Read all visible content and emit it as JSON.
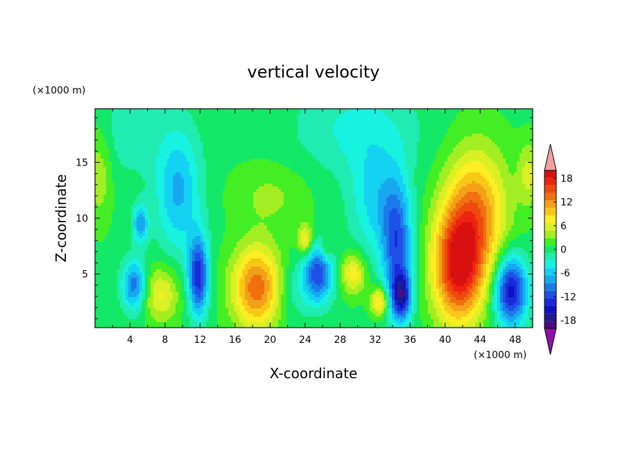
{
  "chart_data": {
    "type": "heatmap",
    "title": "vertical velocity",
    "xlabel": "X-coordinate",
    "ylabel": "Z-coordinate",
    "x_unit_label": "(×1000 m)",
    "y_unit_label": "(×1000 m)",
    "xlim": [
      0,
      50
    ],
    "ylim": [
      0.2,
      19.8
    ],
    "x_ticks": [
      4,
      8,
      12,
      16,
      20,
      24,
      28,
      32,
      36,
      40,
      44,
      48
    ],
    "y_ticks": [
      5,
      10,
      15
    ],
    "x_tick_labels": [
      "4",
      "8",
      "12",
      "16",
      "20",
      "24",
      "28",
      "32",
      "36",
      "40",
      "44",
      "48"
    ],
    "y_tick_labels": [
      "5",
      "10",
      "15"
    ],
    "colorbar": {
      "levels": [
        -20,
        -18,
        -16,
        -14,
        -12,
        -10,
        -8,
        -6,
        -4,
        -2,
        0,
        2,
        4,
        6,
        8,
        10,
        12,
        14,
        16,
        18,
        20
      ],
      "tick_values": [
        -18,
        -12,
        -6,
        0,
        6,
        12,
        18
      ],
      "tick_labels": [
        "-18",
        "-12",
        "-6",
        "0",
        "6",
        "12",
        "18"
      ],
      "colors": [
        "#4b0d7e",
        "#1d1d8f",
        "#1010c0",
        "#1a2ad8",
        "#1e50e8",
        "#1a7ae8",
        "#18a8f0",
        "#14d2f2",
        "#18f2e0",
        "#20ebb0",
        "#14e868",
        "#44ee24",
        "#a2ee22",
        "#daf025",
        "#fcee22",
        "#f8c818",
        "#f4a018",
        "#f07010",
        "#ee4a0e",
        "#ec2410",
        "#d81010"
      ],
      "under_color": "#8e10a8",
      "over_color": "#f2a0a0"
    },
    "features": [
      {
        "x": 4.5,
        "z": 4.0,
        "value": -11,
        "sx": 1.0,
        "sz": 1.6
      },
      {
        "x": 5.2,
        "z": 9.5,
        "value": -9,
        "sx": 0.6,
        "sz": 1.2
      },
      {
        "x": 7.5,
        "z": 3.2,
        "value": 7,
        "sx": 1.5,
        "sz": 1.8
      },
      {
        "x": 9.5,
        "z": 12.5,
        "value": -8,
        "sx": 1.8,
        "sz": 4.0
      },
      {
        "x": 11.8,
        "z": 4.8,
        "value": -15,
        "sx": 0.8,
        "sz": 2.5
      },
      {
        "x": 18.5,
        "z": 3.8,
        "value": 14,
        "sx": 2.0,
        "sz": 2.6
      },
      {
        "x": 22.5,
        "z": 3.5,
        "value": -3,
        "sx": 1.5,
        "sz": 2.0
      },
      {
        "x": 24.0,
        "z": 8.0,
        "value": 8,
        "sx": 0.6,
        "sz": 1.0
      },
      {
        "x": 25.5,
        "z": 5.0,
        "value": -13,
        "sx": 1.2,
        "sz": 1.8
      },
      {
        "x": 26.5,
        "z": 7.2,
        "value": 4,
        "sx": 0.5,
        "sz": 0.8
      },
      {
        "x": 29.5,
        "z": 5.0,
        "value": 8,
        "sx": 1.0,
        "sz": 1.3
      },
      {
        "x": 32.5,
        "z": 2.5,
        "value": 10,
        "sx": 0.7,
        "sz": 0.9
      },
      {
        "x": 32.0,
        "z": 11.5,
        "value": -6,
        "sx": 2.0,
        "sz": 3.5
      },
      {
        "x": 34.5,
        "z": 7.5,
        "value": -12,
        "sx": 1.2,
        "sz": 4.0
      },
      {
        "x": 35.0,
        "z": 3.0,
        "value": -14,
        "sx": 0.8,
        "sz": 1.5
      },
      {
        "x": 41.5,
        "z": 5.5,
        "value": 18,
        "sx": 2.0,
        "sz": 3.5
      },
      {
        "x": 43.5,
        "z": 10.5,
        "value": 12,
        "sx": 2.5,
        "sz": 4.0
      },
      {
        "x": 47.5,
        "z": 3.5,
        "value": -17,
        "sx": 1.3,
        "sz": 2.2
      },
      {
        "x": 0.5,
        "z": 14.0,
        "value": 4,
        "sx": 1.0,
        "sz": 3.0
      },
      {
        "x": 49.5,
        "z": 14.0,
        "value": 5,
        "sx": 0.8,
        "sz": 2.0
      },
      {
        "x": 20.0,
        "z": 12.0,
        "value": 3,
        "sx": 3.0,
        "sz": 2.0
      },
      {
        "x": 30.0,
        "z": 18.0,
        "value": -4,
        "sx": 5.0,
        "sz": 3.0
      },
      {
        "x": 4.0,
        "z": 18.0,
        "value": -3,
        "sx": 2.5,
        "sz": 3.0
      }
    ]
  }
}
